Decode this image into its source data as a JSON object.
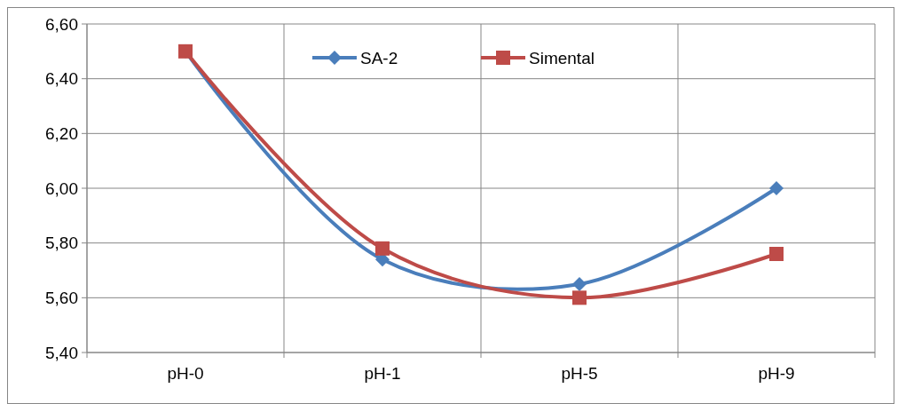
{
  "chart_data": {
    "type": "line",
    "categories": [
      "pH-0",
      "pH-1",
      "pH-5",
      "pH-9"
    ],
    "series": [
      {
        "name": "SA-2",
        "color": "#4a7ebb",
        "values": [
          6.5,
          5.74,
          5.65,
          6.0
        ],
        "marker": "diamond"
      },
      {
        "name": "Simental",
        "color": "#be4b48",
        "values": [
          6.5,
          5.78,
          5.6,
          5.76
        ],
        "marker": "square"
      }
    ],
    "ylim": [
      5.4,
      6.6
    ],
    "yticks": [
      {
        "value": 5.4,
        "label": "5,40"
      },
      {
        "value": 5.6,
        "label": "5,60"
      },
      {
        "value": 5.8,
        "label": "5,80"
      },
      {
        "value": 6.0,
        "label": "6,00"
      },
      {
        "value": 6.2,
        "label": "6,20"
      },
      {
        "value": 6.4,
        "label": "6,40"
      },
      {
        "value": 6.6,
        "label": "6,60"
      }
    ],
    "grid": true,
    "legend": "top",
    "line_style": "solid"
  }
}
